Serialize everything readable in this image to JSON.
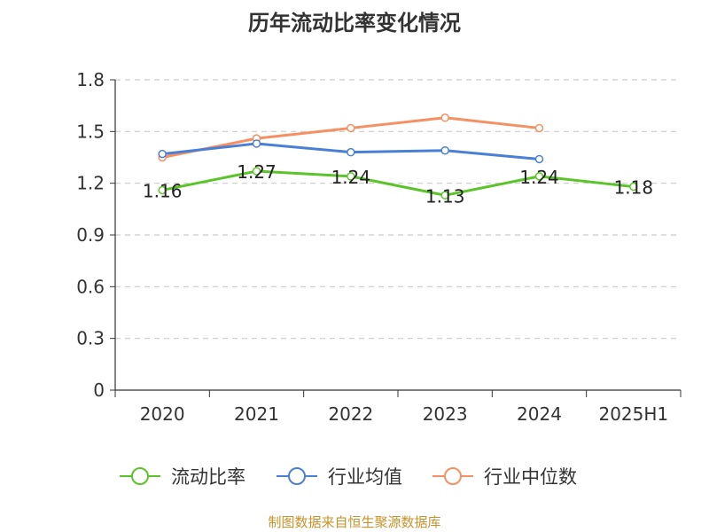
{
  "chart_data": {
    "type": "line",
    "title": "历年流动比率变化情况",
    "categories": [
      "2020",
      "2021",
      "2022",
      "2023",
      "2024",
      "2025H1"
    ],
    "y_ticks": [
      "0",
      "0.3",
      "0.6",
      "0.9",
      "1.2",
      "1.5",
      "1.8"
    ],
    "ylim": [
      0,
      1.8
    ],
    "grid": true,
    "legend_position": "bottom",
    "series": [
      {
        "name": "流动比率",
        "color": "#5cc42b",
        "values": [
          1.16,
          1.27,
          1.24,
          1.13,
          1.24,
          1.18
        ],
        "labels": [
          "1.16",
          "1.27",
          "1.24",
          "1.13",
          "1.24",
          "1.18"
        ]
      },
      {
        "name": "行业均值",
        "color": "#4a7fd6",
        "values": [
          1.37,
          1.43,
          1.38,
          1.39,
          1.34,
          null
        ]
      },
      {
        "name": "行业中位数",
        "color": "#f59062",
        "values": [
          1.35,
          1.46,
          1.52,
          1.58,
          1.52,
          null
        ]
      }
    ]
  },
  "source": "制图数据来自恒生聚源数据库"
}
